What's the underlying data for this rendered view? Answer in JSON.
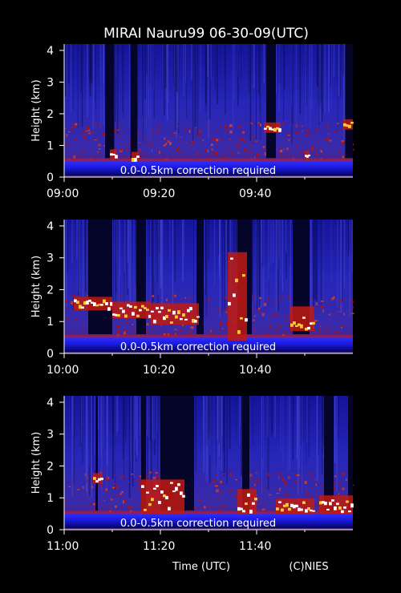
{
  "title": "MIRAI Nauru99 06-30-09(UTC)",
  "xlabel": "Time (UTC)",
  "credit": "(C)NIES",
  "colors": {
    "background": "#000000",
    "signal_low": "#1a1aa8",
    "signal_mid": "#b01010",
    "signal_high": "#ffffff"
  },
  "chart_data": [
    {
      "type": "heatmap",
      "ylabel": "Height (km)",
      "ylim": [
        0,
        4.2
      ],
      "yticks": [
        "0",
        "1",
        "2",
        "3",
        "4"
      ],
      "xticks": [
        "09:00",
        "09:20",
        "09:40"
      ],
      "xlim_minutes": [
        0,
        60
      ],
      "note": "0.0-0.5km correction required",
      "gaps": [
        [
          8.5,
          10.4
        ],
        [
          13.8,
          15.2
        ],
        [
          42,
          44
        ],
        [
          58.4,
          60
        ],
        [
          63.0,
          65.0
        ]
      ],
      "cloud_layers": [
        {
          "x": [
            9.5,
            11
          ],
          "base": 0.7,
          "top": 0.8
        },
        {
          "x": [
            14,
            15.5
          ],
          "base": 0.6,
          "top": 0.72
        },
        {
          "x": [
            41.5,
            45
          ],
          "base": 1.5,
          "top": 1.65
        },
        {
          "x": [
            50,
            51
          ],
          "base": 0.68,
          "top": 0.75
        },
        {
          "x": [
            58,
            63
          ],
          "base": 1.6,
          "top": 1.75
        }
      ]
    },
    {
      "type": "heatmap",
      "ylabel": "Height (km)",
      "ylim": [
        0,
        4.2
      ],
      "yticks": [
        "0",
        "1",
        "2",
        "3",
        "4"
      ],
      "xticks": [
        "10:00",
        "10:20",
        "10:40"
      ],
      "xlim_minutes": [
        0,
        60
      ],
      "note": "0.0-0.5km correction required",
      "gaps": [
        [
          5,
          10
        ],
        [
          15,
          17
        ],
        [
          27.5,
          29
        ],
        [
          36,
          39
        ],
        [
          47.5,
          51
        ]
      ],
      "cloud_layers": [
        {
          "x": [
            2,
            10
          ],
          "base": 1.45,
          "top": 1.7
        },
        {
          "x": [
            10,
            18
          ],
          "base": 1.2,
          "top": 1.55
        },
        {
          "x": [
            18,
            28
          ],
          "base": 1.0,
          "top": 1.5
        },
        {
          "x": [
            34,
            38
          ],
          "base": 0.5,
          "top": 3.1
        },
        {
          "x": [
            47,
            52
          ],
          "base": 0.8,
          "top": 1.4
        }
      ]
    },
    {
      "type": "heatmap",
      "ylabel": "Height (km)",
      "ylim": [
        0,
        4.2
      ],
      "yticks": [
        "0",
        "1",
        "2",
        "3",
        "4"
      ],
      "xticks": [
        "11:00",
        "11:20",
        "11:40"
      ],
      "xlim_minutes": [
        0,
        60
      ],
      "note": "0.0-0.5km correction required",
      "gaps": [
        [
          6.5,
          7
        ],
        [
          16,
          17
        ],
        [
          20,
          27
        ],
        [
          37,
          38.5
        ],
        [
          54,
          56
        ],
        [
          59,
          60
        ]
      ],
      "cloud_layers": [
        {
          "x": [
            6,
            8
          ],
          "base": 1.55,
          "top": 1.7
        },
        {
          "x": [
            16,
            25
          ],
          "base": 0.6,
          "top": 1.5
        },
        {
          "x": [
            36,
            40
          ],
          "base": 0.6,
          "top": 1.2
        },
        {
          "x": [
            44,
            52
          ],
          "base": 0.6,
          "top": 0.9
        },
        {
          "x": [
            53,
            63
          ],
          "base": 0.6,
          "top": 1.0
        }
      ]
    }
  ]
}
